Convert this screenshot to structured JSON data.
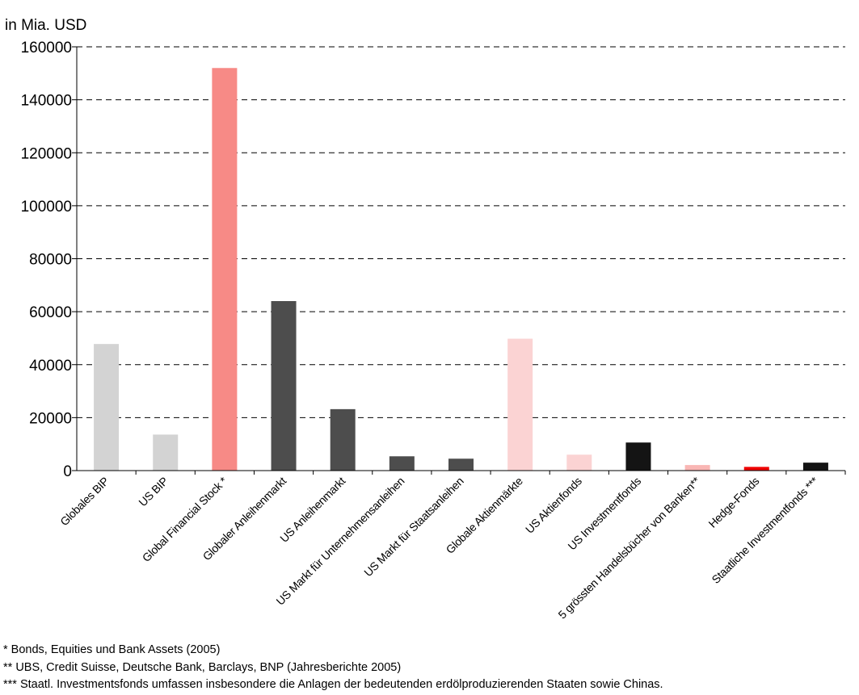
{
  "chart_data": {
    "type": "bar",
    "unit_label": "in Mia. USD",
    "categories": [
      "Globales BIP",
      "US BIP",
      "Global Financial Stock *",
      "Globaler Anleihenmarkt",
      "US Anleihenmarkt",
      "US Markt für Unternehmensanleihen",
      "US Markt für Staatsanleihen",
      "Globale Aktienmärkte",
      "US Aktienfonds",
      "US Investmentfonds",
      "5 grössten Handelsbücher von Banken**",
      "Hedge-Fonds",
      "Staatliche Investmentfonds ***"
    ],
    "values": [
      47800,
      13600,
      152000,
      64000,
      23200,
      5400,
      4500,
      49800,
      6000,
      10600,
      2100,
      1400,
      3000
    ],
    "colors": [
      "#d3d3d3",
      "#d3d3d3",
      "#f78a86",
      "#4d4d4d",
      "#4d4d4d",
      "#4d4d4d",
      "#4d4d4d",
      "#fbd3d3",
      "#fbd3d3",
      "#141414",
      "#f9b6b4",
      "#ee0000",
      "#141414"
    ],
    "ylim": [
      0,
      160000
    ],
    "yticks": [
      0,
      20000,
      40000,
      60000,
      80000,
      100000,
      120000,
      140000,
      160000
    ],
    "grid": true,
    "legend": "none"
  },
  "footnotes": [
    "* Bonds, Equities und Bank Assets (2005)",
    "** UBS, Credit Suisse, Deutsche Bank, Barclays, BNP (Jahresberichte 2005)",
    "*** Staatl. Investmentsfonds umfassen insbesondere die Anlagen der bedeutenden erdölproduzierenden Staaten sowie Chinas."
  ]
}
